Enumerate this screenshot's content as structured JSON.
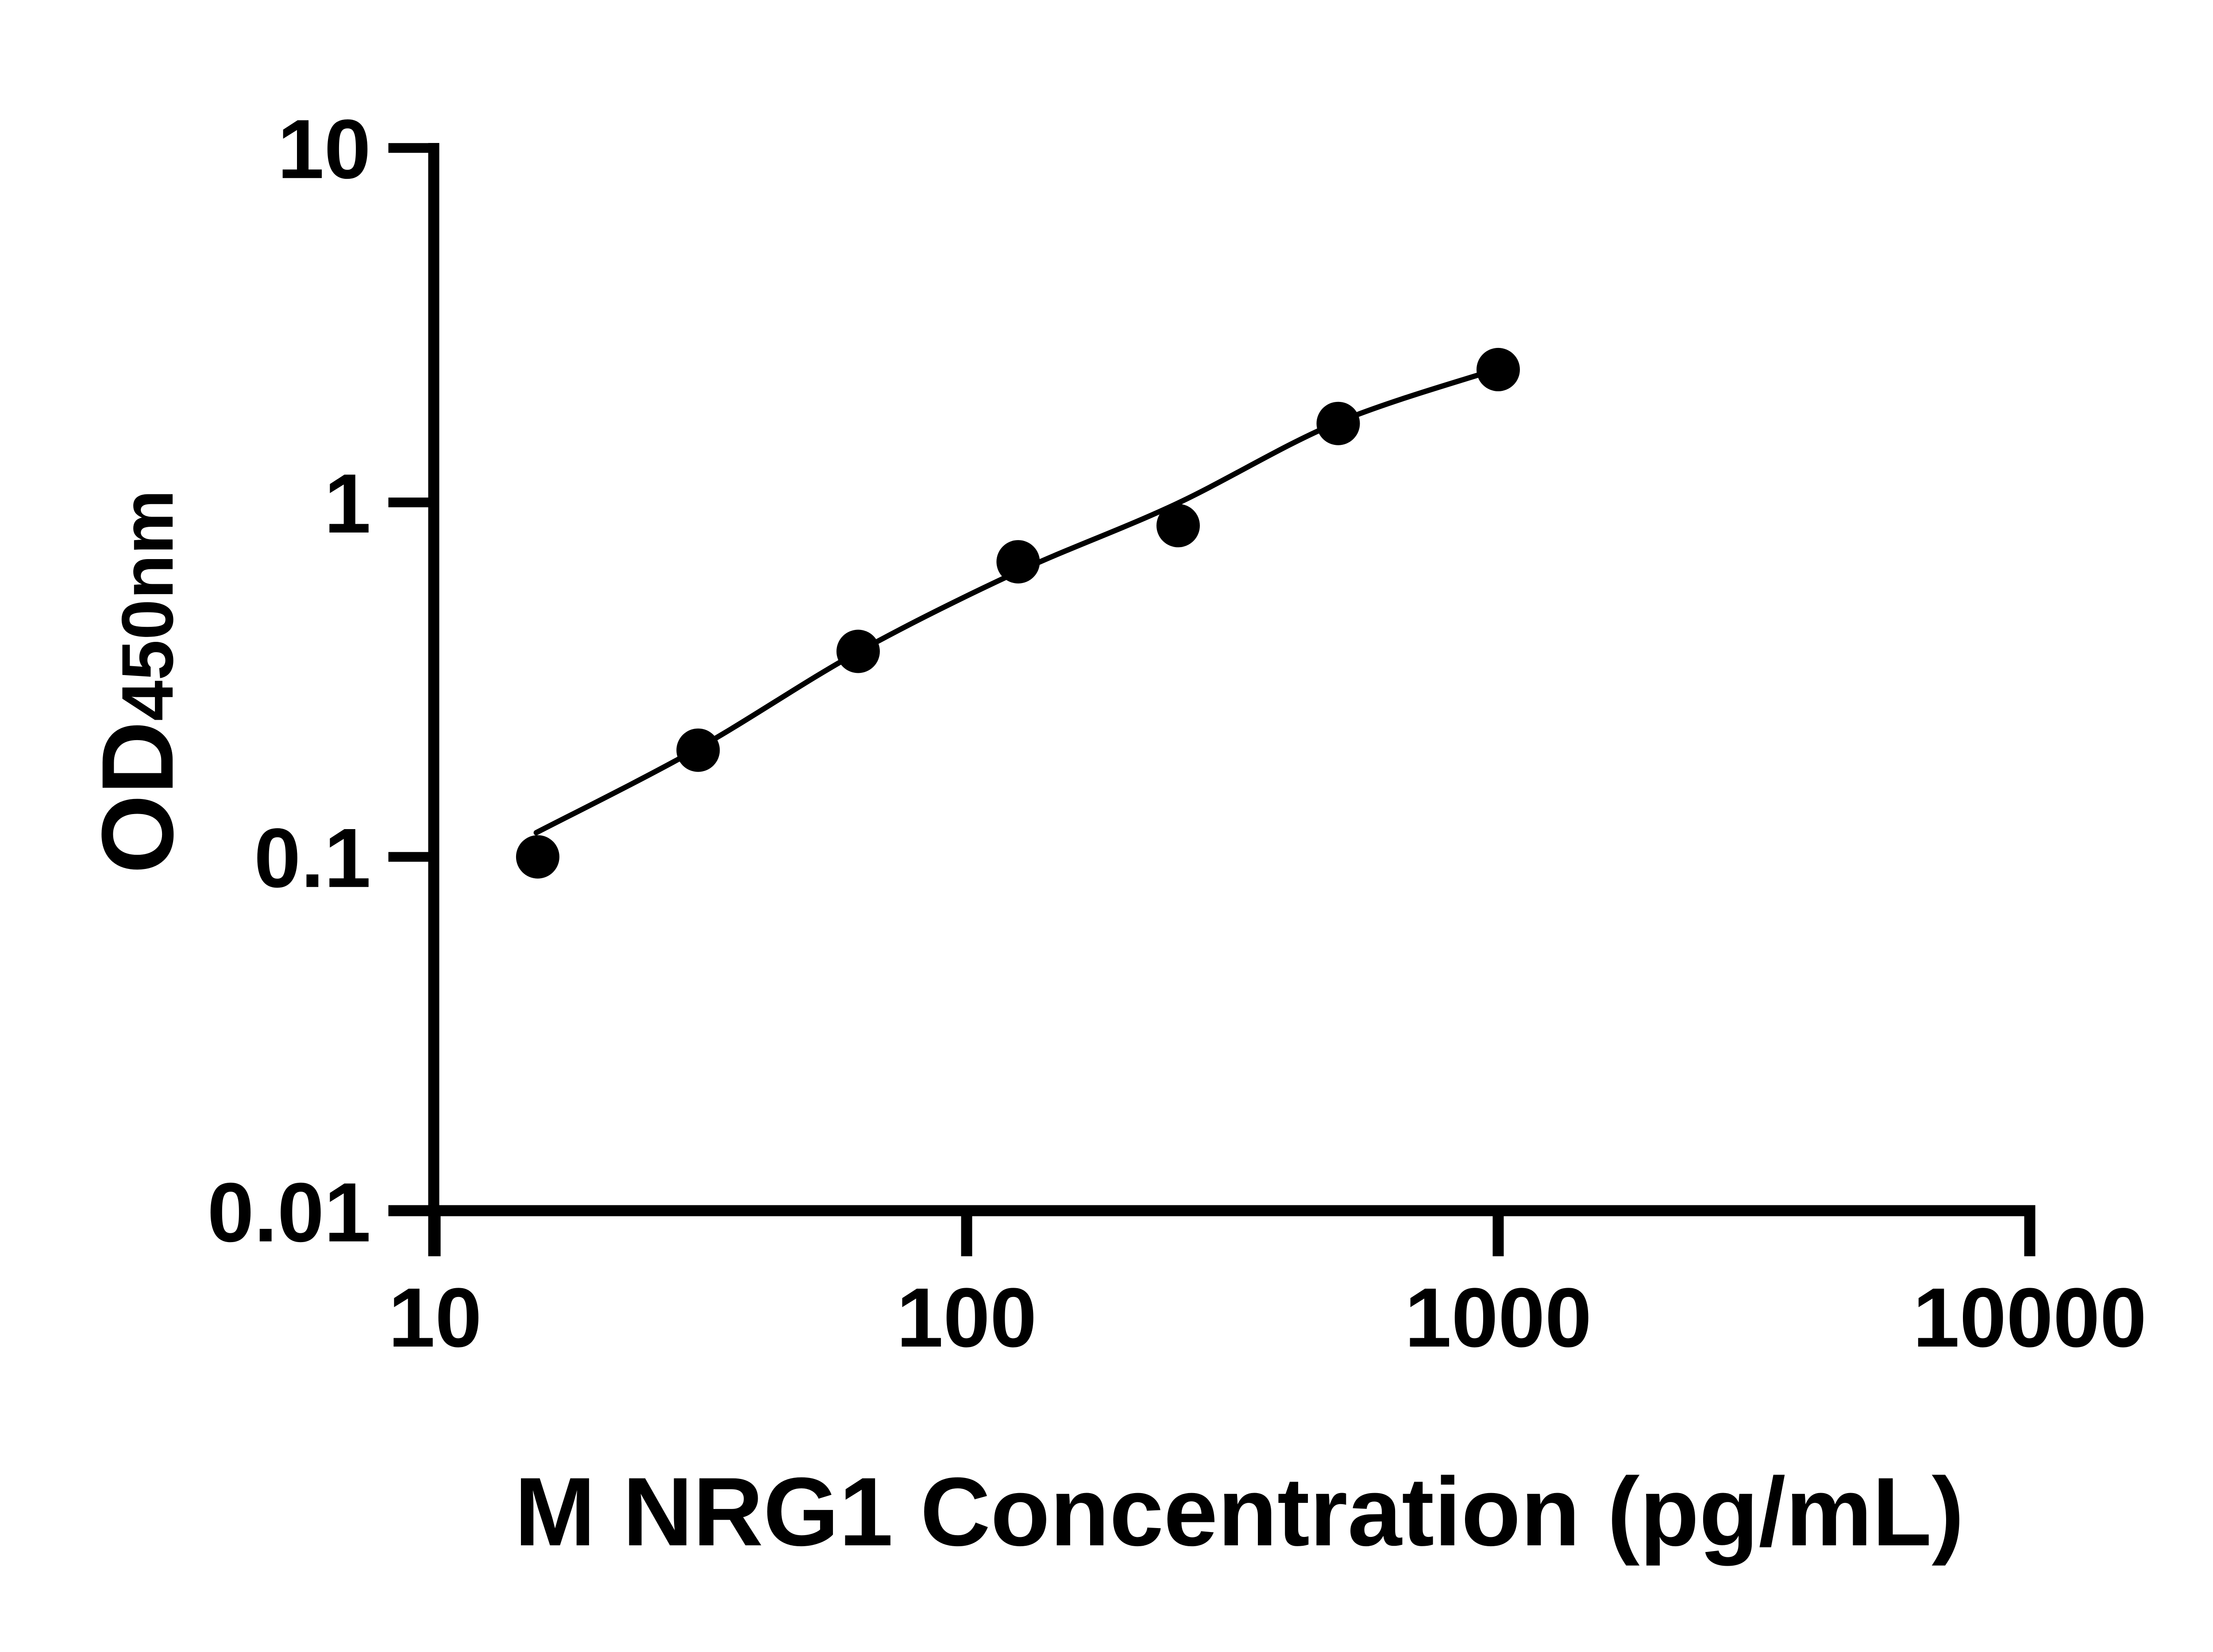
{
  "figure": {
    "x_axis_title": "M NRG1 Concentration (pg/mL)",
    "y_axis_title_main": "OD",
    "y_axis_title_sub": "450nm"
  },
  "colors": {
    "ink": "#000000",
    "background": "#ffffff"
  },
  "chart_data": {
    "type": "scatter",
    "title": "",
    "xlabel": "M NRG1 Concentration (pg/mL)",
    "ylabel": "OD450nm",
    "x_scale": "log",
    "y_scale": "log",
    "xlim": [
      10,
      10000
    ],
    "ylim": [
      0.01,
      10
    ],
    "grid": false,
    "legend_position": "none",
    "x_ticks": [
      10,
      100,
      1000,
      10000
    ],
    "x_tick_labels": [
      "10",
      "100",
      "1000",
      "10000"
    ],
    "y_ticks": [
      10,
      1,
      0.1,
      0.01
    ],
    "y_tick_labels": [
      "10",
      "1",
      "0.1",
      "0.01"
    ],
    "series": [
      {
        "name": "standard-points",
        "plot_as": "markers",
        "marker": "filled-circle",
        "color": "#000000",
        "x": [
          15.6,
          31.25,
          62.5,
          125,
          250,
          500,
          1000
        ],
        "y": [
          0.1,
          0.2,
          0.38,
          0.68,
          0.86,
          1.67,
          2.37
        ]
      },
      {
        "name": "fit-curve",
        "plot_as": "line",
        "color": "#000000",
        "x": [
          15.5,
          31,
          62,
          123,
          246,
          494,
          990
        ],
        "y": [
          0.117,
          0.201,
          0.376,
          0.631,
          0.985,
          1.672,
          2.372
        ]
      }
    ]
  }
}
